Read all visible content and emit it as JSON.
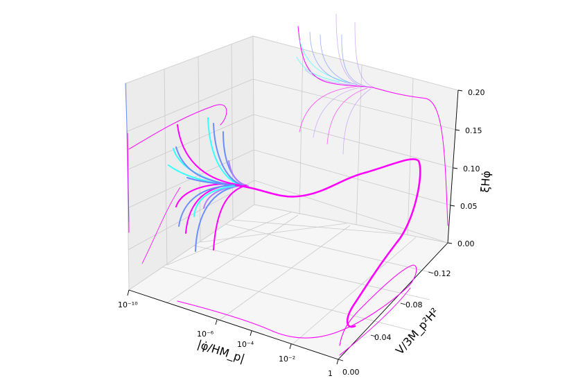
{
  "chart_data": {
    "type": "line3d",
    "title": "",
    "axes": {
      "x": {
        "label": "|φ̇/HM_p|",
        "scale": "log",
        "ticks": [
          "10⁻¹⁰",
          "10⁻⁶",
          "10⁻⁴",
          "10⁻²",
          "1"
        ]
      },
      "y": {
        "label": "V/3M_p²H²",
        "ticks": [
          "0.00",
          "0.04",
          "0.08",
          "0.12"
        ]
      },
      "z": {
        "label": "ξHφ̇",
        "ticks": [
          "0.00",
          "0.05",
          "0.10",
          "0.15",
          "0.20"
        ]
      }
    },
    "grid": true,
    "colors": {
      "attractor": "#ff00ff",
      "cyan": "#33ffff",
      "blue": "#6a8cff",
      "violet": "#b07cff",
      "pane_side": "#ececec",
      "pane_back": "#f2f2f2",
      "pane_floor": "#f6f6f6"
    },
    "series": []
  }
}
